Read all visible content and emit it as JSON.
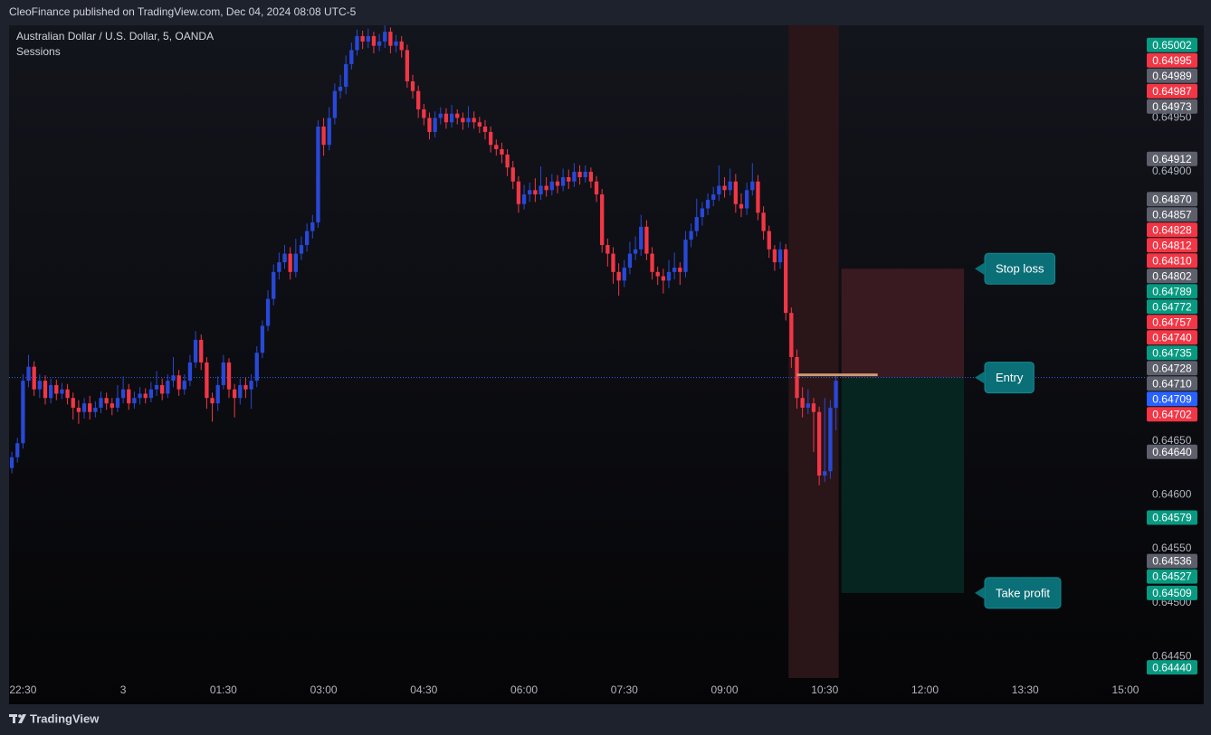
{
  "header": {
    "publisher": "CleoFinance published on TradingView.com, Dec 04, 2024 08:08 UTC-5"
  },
  "footer": {
    "brand": "TradingView"
  },
  "chart_data": {
    "type": "candlestick",
    "title": "Australian Dollar / U.S. Dollar, 5, OANDA",
    "subtitle": "Sessions",
    "up_color": "#2848d8",
    "down_color": "#f23645",
    "open": [
      0.64625,
      0.64635,
      0.64648,
      0.64706,
      0.64719,
      0.64698,
      0.64706,
      0.6469,
      0.64702,
      0.64694,
      0.64698,
      0.6469,
      0.64681,
      0.64677,
      0.64685,
      0.64677,
      0.64681,
      0.6469,
      0.64685,
      0.64681,
      0.6469,
      0.64698,
      0.64685,
      0.6469,
      0.64694,
      0.6469,
      0.64698,
      0.64702,
      0.64694,
      0.64706,
      0.64711,
      0.64698,
      0.64706,
      0.64723,
      0.64744,
      0.64723,
      0.6469,
      0.64685,
      0.64702,
      0.64723,
      0.64698,
      0.6469,
      0.64702,
      0.64698,
      0.64706,
      0.64732,
      0.64757,
      0.64782,
      0.64807,
      0.64816,
      0.64824,
      0.64807,
      0.64824,
      0.64832,
      0.64845,
      0.64853,
      0.64942,
      0.64925,
      0.6495,
      0.64975,
      0.64979,
      0.65,
      0.65013,
      0.65026,
      0.65021,
      0.65026,
      0.65017,
      0.65021,
      0.6503,
      0.65017,
      0.65021,
      0.65013,
      0.64984,
      0.64975,
      0.64958,
      0.6495,
      0.64937,
      0.6495,
      0.64954,
      0.64946,
      0.64954,
      0.6495,
      0.64946,
      0.6495,
      0.64946,
      0.64942,
      0.64937,
      0.64925,
      0.64921,
      0.64916,
      0.64904,
      0.64891,
      0.6487,
      0.64879,
      0.64883,
      0.64879,
      0.64887,
      0.64883,
      0.64891,
      0.64887,
      0.64895,
      0.64891,
      0.649,
      0.64895,
      0.649,
      0.64891,
      0.64879,
      0.64832,
      0.64824,
      0.64807,
      0.64799,
      0.64811,
      0.64824,
      0.64828,
      0.64849,
      0.64824,
      0.64807,
      0.64803,
      0.64799,
      0.64807,
      0.64811,
      0.64807,
      0.64837,
      0.64845,
      0.64858,
      0.64866,
      0.64874,
      0.64879,
      0.64887,
      0.64883,
      0.64891,
      0.6487,
      0.64866,
      0.64883,
      0.64891,
      0.64862,
      0.64845,
      0.64828,
      0.64816,
      0.64828,
      0.64769,
      0.64728,
      0.6469,
      0.64681,
      0.64685,
      0.64677,
      0.64618,
      0.64622,
      0.64681
    ],
    "high": [
      0.6464,
      0.64653,
      0.64712,
      0.6473,
      0.64724,
      0.64712,
      0.64711,
      0.64708,
      0.64707,
      0.64704,
      0.64703,
      0.64695,
      0.64688,
      0.6469,
      0.64692,
      0.64687,
      0.64696,
      0.64695,
      0.6469,
      0.64702,
      0.6471,
      0.64703,
      0.64696,
      0.647,
      0.64699,
      0.64705,
      0.64715,
      0.64708,
      0.64712,
      0.64728,
      0.64716,
      0.64712,
      0.6473,
      0.64752,
      0.64749,
      0.64728,
      0.64695,
      0.6471,
      0.6473,
      0.64727,
      0.64703,
      0.64708,
      0.64709,
      0.64712,
      0.64738,
      0.64762,
      0.6479,
      0.64814,
      0.64825,
      0.64832,
      0.6483,
      0.64838,
      0.6484,
      0.64852,
      0.6486,
      0.64948,
      0.6495,
      0.6496,
      0.64982,
      0.6499,
      0.65008,
      0.6502,
      0.65032,
      0.65031,
      0.65033,
      0.6503,
      0.65028,
      0.65036,
      0.65034,
      0.65027,
      0.65026,
      0.65018,
      0.6499,
      0.6498,
      0.64963,
      0.64955,
      0.64956,
      0.6496,
      0.64959,
      0.64962,
      0.64958,
      0.64955,
      0.64961,
      0.64956,
      0.64951,
      0.64948,
      0.64942,
      0.6493,
      0.64927,
      0.64921,
      0.6491,
      0.64896,
      0.64888,
      0.6489,
      0.64894,
      0.64905,
      0.64895,
      0.64898,
      0.64897,
      0.64903,
      0.64902,
      0.64908,
      0.64906,
      0.64906,
      0.64904,
      0.64896,
      0.64884,
      0.64838,
      0.6483,
      0.64815,
      0.64818,
      0.64835,
      0.6484,
      0.6486,
      0.64855,
      0.6483,
      0.64812,
      0.6481,
      0.64818,
      0.64825,
      0.64816,
      0.64845,
      0.64852,
      0.64875,
      0.64872,
      0.6488,
      0.64886,
      0.64906,
      0.64895,
      0.64903,
      0.64898,
      0.6488,
      0.6489,
      0.64908,
      0.64897,
      0.64868,
      0.6485,
      0.64832,
      0.64835,
      0.64833,
      0.64774,
      0.64735,
      0.647,
      0.64698,
      0.6469,
      0.64682,
      0.6469,
      0.64688,
      0.64712
    ],
    "low": [
      0.6462,
      0.6463,
      0.64643,
      0.647,
      0.64692,
      0.6469,
      0.64684,
      0.64685,
      0.64688,
      0.64689,
      0.64684,
      0.6467,
      0.64666,
      0.64671,
      0.6467,
      0.64672,
      0.64676,
      0.64679,
      0.64674,
      0.64677,
      0.64685,
      0.64679,
      0.6468,
      0.64684,
      0.64685,
      0.64686,
      0.64692,
      0.64688,
      0.6469,
      0.647,
      0.64692,
      0.64693,
      0.64701,
      0.64718,
      0.64716,
      0.6468,
      0.64668,
      0.64678,
      0.64698,
      0.6469,
      0.64672,
      0.64684,
      0.6469,
      0.6468,
      0.647,
      0.64727,
      0.64752,
      0.64776,
      0.648,
      0.6481,
      0.648,
      0.64802,
      0.64818,
      0.64826,
      0.64838,
      0.64848,
      0.64915,
      0.6492,
      0.64944,
      0.64968,
      0.64972,
      0.64995,
      0.65008,
      0.65014,
      0.65015,
      0.6501,
      0.65012,
      0.65015,
      0.6501,
      0.65011,
      0.65006,
      0.64978,
      0.64968,
      0.6495,
      0.64943,
      0.6493,
      0.64932,
      0.64944,
      0.6494,
      0.64941,
      0.64944,
      0.64939,
      0.64941,
      0.6494,
      0.64936,
      0.6493,
      0.64918,
      0.64915,
      0.64908,
      0.64896,
      0.64884,
      0.64862,
      0.64865,
      0.64872,
      0.64872,
      0.64874,
      0.64877,
      0.64878,
      0.6488,
      0.64882,
      0.64884,
      0.64886,
      0.64888,
      0.6489,
      0.64885,
      0.64872,
      0.64825,
      0.64812,
      0.64796,
      0.64785,
      0.64793,
      0.64805,
      0.64818,
      0.64822,
      0.64818,
      0.648,
      0.64795,
      0.64787,
      0.64792,
      0.648,
      0.64795,
      0.64802,
      0.6483,
      0.6484,
      0.6485,
      0.6486,
      0.64868,
      0.64873,
      0.64876,
      0.64878,
      0.64862,
      0.64858,
      0.6486,
      0.64878,
      0.64855,
      0.64837,
      0.6482,
      0.64808,
      0.6481,
      0.64762,
      0.64718,
      0.6468,
      0.64672,
      0.64675,
      0.6464,
      0.64609,
      0.64612,
      0.64615,
      0.6466
    ],
    "close": [
      0.64635,
      0.64648,
      0.64706,
      0.64719,
      0.64698,
      0.64706,
      0.6469,
      0.64702,
      0.64694,
      0.64698,
      0.6469,
      0.64681,
      0.64677,
      0.64685,
      0.64677,
      0.64681,
      0.6469,
      0.64685,
      0.64681,
      0.6469,
      0.64698,
      0.64685,
      0.6469,
      0.64694,
      0.6469,
      0.64698,
      0.64702,
      0.64694,
      0.64706,
      0.64711,
      0.64698,
      0.64706,
      0.64723,
      0.64744,
      0.64723,
      0.6469,
      0.64685,
      0.64702,
      0.64723,
      0.64698,
      0.6469,
      0.64702,
      0.64698,
      0.64706,
      0.64732,
      0.64757,
      0.64782,
      0.64807,
      0.64816,
      0.64824,
      0.64807,
      0.64824,
      0.64832,
      0.64845,
      0.64853,
      0.64942,
      0.64925,
      0.6495,
      0.64975,
      0.64979,
      0.65,
      0.65013,
      0.65026,
      0.65021,
      0.65026,
      0.65017,
      0.65021,
      0.6503,
      0.65017,
      0.65021,
      0.65013,
      0.64984,
      0.64975,
      0.64958,
      0.6495,
      0.64937,
      0.6495,
      0.64954,
      0.64946,
      0.64954,
      0.6495,
      0.64946,
      0.6495,
      0.64946,
      0.64942,
      0.64937,
      0.64925,
      0.64921,
      0.64916,
      0.64904,
      0.64891,
      0.6487,
      0.64879,
      0.64883,
      0.64879,
      0.64887,
      0.64883,
      0.64891,
      0.64887,
      0.64895,
      0.64891,
      0.649,
      0.64895,
      0.649,
      0.64891,
      0.64879,
      0.64832,
      0.64824,
      0.64807,
      0.64799,
      0.64811,
      0.64824,
      0.64828,
      0.64849,
      0.64824,
      0.64807,
      0.64803,
      0.64799,
      0.64807,
      0.64811,
      0.64807,
      0.64837,
      0.64845,
      0.64858,
      0.64866,
      0.64874,
      0.64879,
      0.64887,
      0.64883,
      0.64891,
      0.6487,
      0.64866,
      0.64883,
      0.64891,
      0.64862,
      0.64845,
      0.64828,
      0.64816,
      0.64828,
      0.64769,
      0.64728,
      0.6469,
      0.64681,
      0.64685,
      0.64677,
      0.64618,
      0.64622,
      0.64681,
      0.64706
    ],
    "xlim": [
      -0.5,
      203.5
    ],
    "xticks": [
      {
        "value": 2,
        "label": "22:30"
      },
      {
        "value": 20,
        "label": "3"
      },
      {
        "value": 38,
        "label": "01:30"
      },
      {
        "value": 56,
        "label": "03:00"
      },
      {
        "value": 74,
        "label": "04:30"
      },
      {
        "value": 92,
        "label": "06:00"
      },
      {
        "value": 110,
        "label": "07:30"
      },
      {
        "value": 128,
        "label": "09:00"
      },
      {
        "value": 146,
        "label": "10:30"
      },
      {
        "value": 164,
        "label": "12:00"
      },
      {
        "value": 182,
        "label": "13:30"
      },
      {
        "value": 200,
        "label": "15:00"
      }
    ],
    "ylim": [
      0.6443,
      0.65036
    ],
    "yticks": [
      {
        "value": 0.6495,
        "label": "0.64950"
      },
      {
        "value": 0.649,
        "label": "0.64900"
      },
      {
        "value": 0.6465,
        "label": "0.64650"
      },
      {
        "value": 0.646,
        "label": "0.64600"
      },
      {
        "value": 0.6455,
        "label": "0.64550"
      },
      {
        "value": 0.645,
        "label": "0.64500"
      },
      {
        "value": 0.6445,
        "label": "0.64450"
      }
    ],
    "price_labels": [
      {
        "value": 0.65002,
        "label": "0.65002",
        "color": "#089981"
      },
      {
        "value": 0.64995,
        "label": "0.64995",
        "color": "#f23645"
      },
      {
        "value": 0.64989,
        "label": "0.64989",
        "color": "#5d606b"
      },
      {
        "value": 0.64987,
        "label": "0.64987",
        "color": "#f23645"
      },
      {
        "value": 0.64973,
        "label": "0.64973",
        "color": "#5d606b"
      },
      {
        "value": 0.64912,
        "label": "0.64912",
        "color": "#5d606b"
      },
      {
        "value": 0.6487,
        "label": "0.64870",
        "color": "#5d606b"
      },
      {
        "value": 0.64857,
        "label": "0.64857",
        "color": "#5d606b"
      },
      {
        "value": 0.64828,
        "label": "0.64828",
        "color": "#f23645"
      },
      {
        "value": 0.64812,
        "label": "0.64812",
        "color": "#f23645"
      },
      {
        "value": 0.6481,
        "label": "0.64810",
        "color": "#f23645"
      },
      {
        "value": 0.64802,
        "label": "0.64802",
        "color": "#5d606b"
      },
      {
        "value": 0.64789,
        "label": "0.64789",
        "color": "#089981"
      },
      {
        "value": 0.64772,
        "label": "0.64772",
        "color": "#089981"
      },
      {
        "value": 0.64757,
        "label": "0.64757",
        "color": "#f23645"
      },
      {
        "value": 0.6474,
        "label": "0.64740",
        "color": "#f23645"
      },
      {
        "value": 0.64735,
        "label": "0.64735",
        "color": "#089981"
      },
      {
        "value": 0.64728,
        "label": "0.64728",
        "color": "#5d606b"
      },
      {
        "value": 0.6471,
        "label": "0.64710",
        "color": "#5d606b"
      },
      {
        "value": 0.64709,
        "label": "0.64709",
        "color": "#2962ff"
      },
      {
        "value": 0.64702,
        "label": "0.64702",
        "color": "#f23645"
      },
      {
        "value": 0.6464,
        "label": "0.64640",
        "color": "#5d606b"
      },
      {
        "value": 0.64579,
        "label": "0.64579",
        "color": "#089981"
      },
      {
        "value": 0.64536,
        "label": "0.64536",
        "color": "#5d606b"
      },
      {
        "value": 0.64527,
        "label": "0.64527",
        "color": "#089981"
      },
      {
        "value": 0.64509,
        "label": "0.64509",
        "color": "#089981"
      },
      {
        "value": 0.6444,
        "label": "0.64440",
        "color": "#089981"
      }
    ],
    "sessions": [
      {
        "start": 139.5,
        "end": 148.5,
        "color": "#2a1519"
      }
    ],
    "position": {
      "entry": 0.64709,
      "stop_loss": 0.6481,
      "take_profit": 0.64509,
      "start": 149,
      "end": 171,
      "labels": {
        "stop_loss": "Stop loss",
        "entry": "Entry",
        "take_profit": "Take profit"
      }
    }
  }
}
